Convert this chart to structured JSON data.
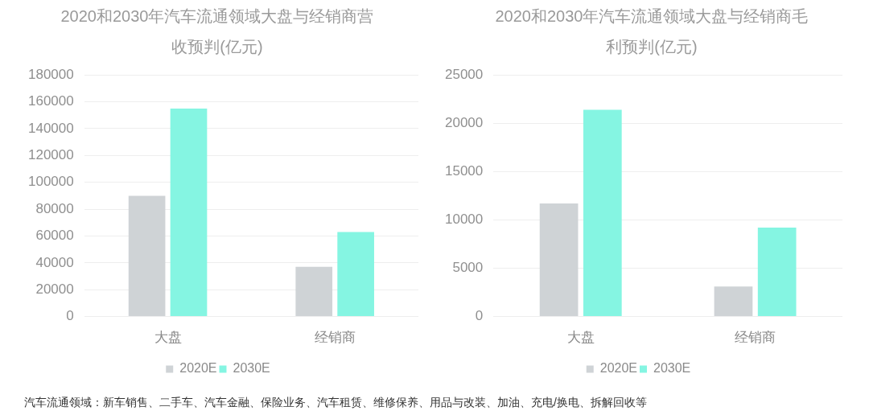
{
  "chart_data": [
    {
      "type": "bar",
      "title": "2020和2030年汽车流通领域大盘与经销商营收预判(亿元)",
      "categories": [
        "大盘",
        "经销商"
      ],
      "series": [
        {
          "name": "2020E",
          "color": "#cfd3d6",
          "values": [
            90000,
            37000
          ]
        },
        {
          "name": "2030E",
          "color": "#85f5e2",
          "values": [
            155000,
            63000
          ]
        }
      ],
      "ylim": [
        0,
        180000
      ],
      "yticks": [
        0,
        20000,
        40000,
        60000,
        80000,
        100000,
        120000,
        140000,
        160000,
        180000
      ],
      "grid": "y",
      "legend": "bottom",
      "annotations": [
        "汽车流通领域：新车销售、二手车、汽车金融、保险业务、汽车租赁、维修保养、用品与改装、加油、充电/换电、拆解回收等"
      ]
    },
    {
      "type": "bar",
      "title": "2020和2030年汽车流通领域大盘与经销商毛利预判(亿元)",
      "categories": [
        "大盘",
        "经销商"
      ],
      "series": [
        {
          "name": "2020E",
          "color": "#cfd3d6",
          "values": [
            11700,
            3100
          ]
        },
        {
          "name": "2030E",
          "color": "#85f5e2",
          "values": [
            21400,
            9200
          ]
        }
      ],
      "ylim": [
        0,
        25000
      ],
      "yticks": [
        0,
        5000,
        10000,
        15000,
        20000,
        25000
      ],
      "grid": "y",
      "legend": "bottom"
    }
  ]
}
